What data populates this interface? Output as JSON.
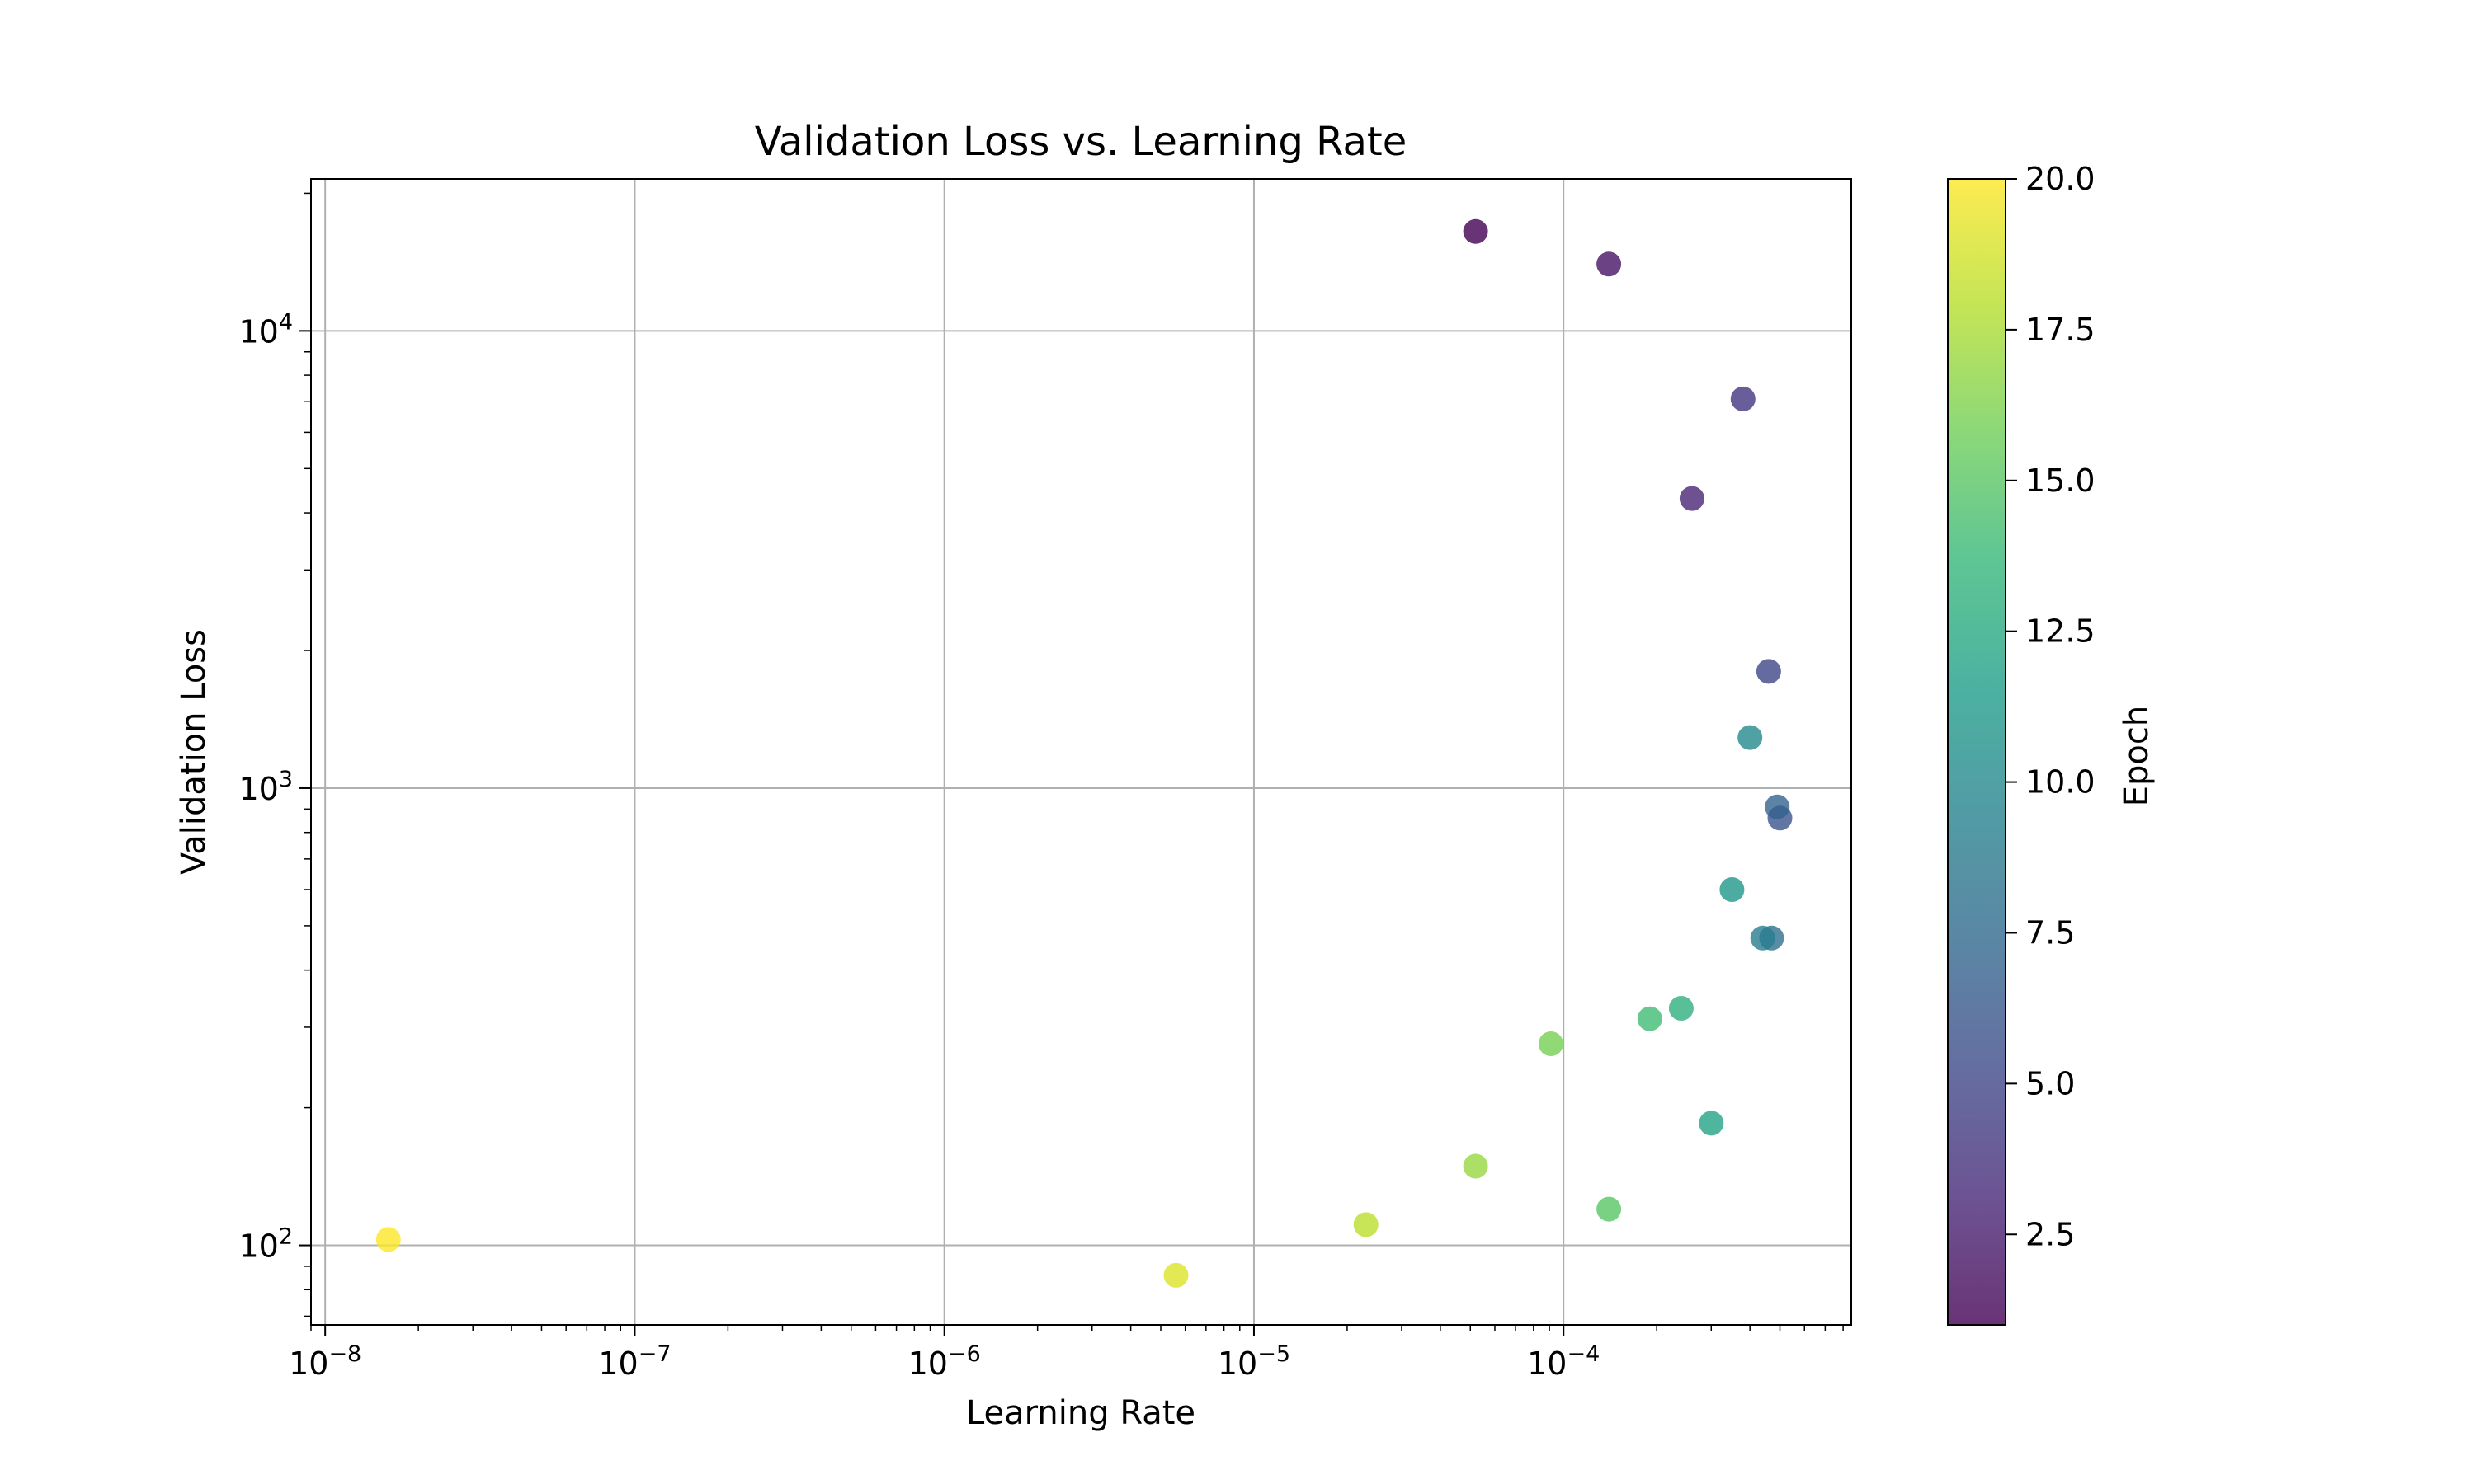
{
  "chart_data": {
    "type": "scatter",
    "title": "Validation Loss vs. Learning Rate",
    "xlabel": "Learning Rate",
    "ylabel": "Validation Loss",
    "x_scale": "log",
    "y_scale": "log",
    "xlim": [
      9e-09,
      0.00085
    ],
    "ylim": [
      67,
      21500
    ],
    "grid": true,
    "x_major_ticks": [
      {
        "value": 1e-08,
        "label": "10^−8",
        "base": "10",
        "exp": "−8"
      },
      {
        "value": 1e-07,
        "label": "10^−7",
        "base": "10",
        "exp": "−7"
      },
      {
        "value": 1e-06,
        "label": "10^−6",
        "base": "10",
        "exp": "−6"
      },
      {
        "value": 1e-05,
        "label": "10^−5",
        "base": "10",
        "exp": "−5"
      },
      {
        "value": 0.0001,
        "label": "10^−4",
        "base": "10",
        "exp": "−4"
      }
    ],
    "y_major_ticks": [
      {
        "value": 100,
        "label": "10^2",
        "base": "10",
        "exp": "2"
      },
      {
        "value": 1000,
        "label": "10^3",
        "base": "10",
        "exp": "3"
      },
      {
        "value": 10000,
        "label": "10^4",
        "base": "10",
        "exp": "4"
      }
    ],
    "colormap": {
      "name": "viridis",
      "alpha": 0.8,
      "stops": [
        "#440154",
        "#482878",
        "#3e4989",
        "#31688e",
        "#26828e",
        "#1f9e89",
        "#35b779",
        "#6ece58",
        "#b5de2b",
        "#fde725"
      ]
    },
    "colorbar": {
      "label": "Epoch",
      "range": [
        1,
        20
      ],
      "ticks": [
        {
          "value": 2.5,
          "label": "2.5"
        },
        {
          "value": 5.0,
          "label": "5.0"
        },
        {
          "value": 7.5,
          "label": "7.5"
        },
        {
          "value": 10.0,
          "label": "10.0"
        },
        {
          "value": 12.5,
          "label": "12.5"
        },
        {
          "value": 15.0,
          "label": "15.0"
        },
        {
          "value": 17.5,
          "label": "17.5"
        },
        {
          "value": 20.0,
          "label": "20.0"
        }
      ]
    },
    "points": [
      {
        "x": 5.2e-05,
        "y": 16500,
        "epoch": 1
      },
      {
        "x": 0.00014,
        "y": 14000,
        "epoch": 2
      },
      {
        "x": 0.00026,
        "y": 4300,
        "epoch": 3
      },
      {
        "x": 0.00038,
        "y": 7100,
        "epoch": 4
      },
      {
        "x": 0.00046,
        "y": 1800,
        "epoch": 5
      },
      {
        "x": 0.0005,
        "y": 860,
        "epoch": 6
      },
      {
        "x": 0.00049,
        "y": 910,
        "epoch": 7
      },
      {
        "x": 0.00047,
        "y": 470,
        "epoch": 8
      },
      {
        "x": 0.00044,
        "y": 470,
        "epoch": 9
      },
      {
        "x": 0.0004,
        "y": 1290,
        "epoch": 10
      },
      {
        "x": 0.00035,
        "y": 600,
        "epoch": 11
      },
      {
        "x": 0.0003,
        "y": 185,
        "epoch": 12
      },
      {
        "x": 0.00024,
        "y": 330,
        "epoch": 13
      },
      {
        "x": 0.00019,
        "y": 313,
        "epoch": 14
      },
      {
        "x": 0.00014,
        "y": 120,
        "epoch": 15
      },
      {
        "x": 9.1e-05,
        "y": 276,
        "epoch": 16
      },
      {
        "x": 5.2e-05,
        "y": 149,
        "epoch": 17
      },
      {
        "x": 2.3e-05,
        "y": 111,
        "epoch": 18
      },
      {
        "x": 5.6e-06,
        "y": 86,
        "epoch": 19
      },
      {
        "x": 1.6e-08,
        "y": 103,
        "epoch": 20
      }
    ]
  }
}
